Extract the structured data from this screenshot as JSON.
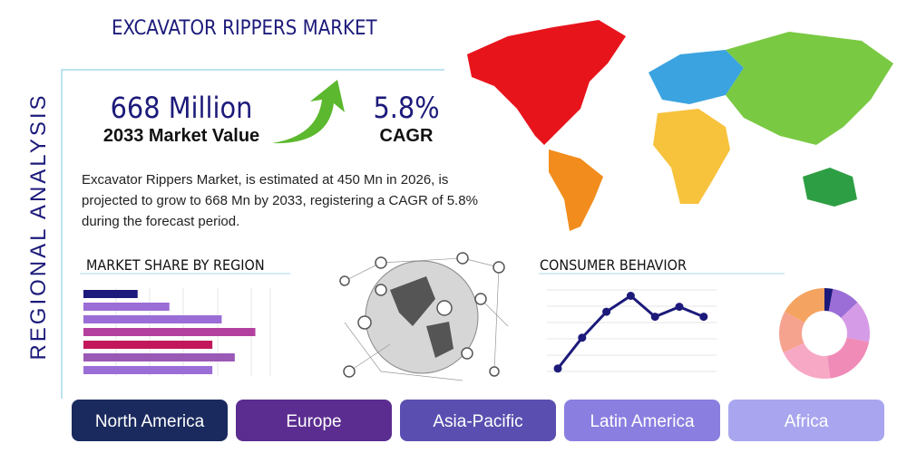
{
  "header": {
    "title": "EXCAVATOR RIPPERS MARKET",
    "side_label": "REGIONAL ANALYSIS"
  },
  "stats": {
    "market_value": "668 Million",
    "market_value_label": "2033 Market Value",
    "cagr": "5.8%",
    "cagr_label": "CAGR"
  },
  "description": [
    "Excavator Rippers Market, is estimated at 450 Mn in 2026, is",
    "projected to grow to 668 Mn by 2033, registering a CAGR of 5.8%",
    "during the forecast period."
  ],
  "market_share_chart": {
    "type": "bar",
    "title": "MARKET SHARE BY REGION",
    "values": [
      29,
      46,
      74,
      92,
      69,
      81,
      69
    ],
    "colors": [
      "#1c1a7a",
      "#9b6dd6",
      "#9b6dd6",
      "#b3409f",
      "#c2185b",
      "#9b59b6",
      "#9b6dd6"
    ],
    "xlim": [
      0,
      100
    ]
  },
  "consumer_chart": {
    "type": "line",
    "title": "CONSUMER BEHAVIOR",
    "values": [
      12,
      43,
      69,
      85,
      64,
      74,
      64
    ],
    "color": "#1c1a7a",
    "ylim": [
      0,
      100
    ]
  },
  "donut_chart": {
    "type": "pie",
    "values": [
      3,
      10,
      15,
      20,
      20,
      15,
      17
    ],
    "colors": [
      "#1c1a7a",
      "#9b6dd6",
      "#d59be6",
      "#f08bb8",
      "#f7a8c4",
      "#f5a38f",
      "#f4a460"
    ]
  },
  "regions": [
    {
      "label": "North America",
      "color": "#1a2a5e"
    },
    {
      "label": "Europe",
      "color": "#5b2d90"
    },
    {
      "label": "Asia-Pacific",
      "color": "#5a4fb0"
    },
    {
      "label": "Latin America",
      "color": "#8a7ee0"
    },
    {
      "label": "Africa",
      "color": "#a9a6ef"
    }
  ]
}
